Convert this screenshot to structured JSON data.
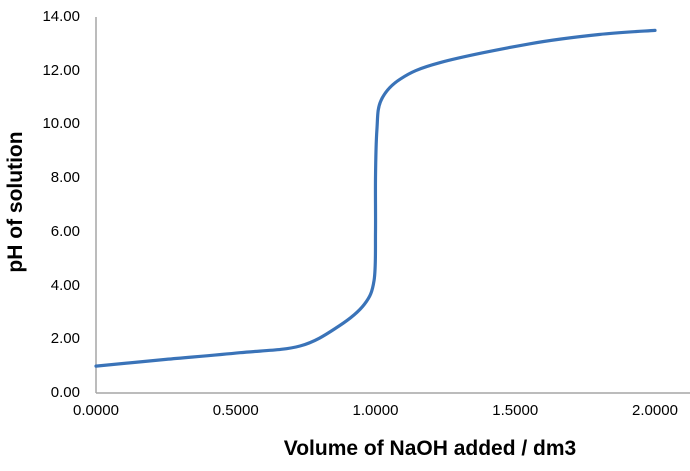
{
  "chart_data": {
    "type": "line",
    "title": "",
    "xlabel": "Volume of NaOH added / dm3",
    "ylabel": "pH of solution",
    "xlim": [
      0,
      2
    ],
    "ylim": [
      0,
      14
    ],
    "grid": false,
    "legend": null,
    "x_ticks": [
      "0.0000",
      "0.5000",
      "1.0000",
      "1.5000",
      "2.0000"
    ],
    "y_ticks": [
      "0.00",
      "2.00",
      "4.00",
      "6.00",
      "8.00",
      "10.00",
      "12.00",
      "14.00"
    ],
    "series": [
      {
        "name": "pH",
        "color": "#3a73b8",
        "x": [
          0.0,
          0.25,
          0.515,
          0.73,
          0.87,
          0.96,
          0.995,
          1.0,
          1.0,
          1.005,
          1.02,
          1.09,
          1.23,
          1.55,
          1.8,
          2.0
        ],
        "y": [
          1.0,
          1.25,
          1.5,
          1.75,
          2.5,
          3.3,
          4.2,
          6.0,
          8.0,
          9.8,
          10.9,
          11.7,
          12.3,
          13.0,
          13.35,
          13.5
        ]
      }
    ]
  },
  "axes": {
    "x_label": "Volume of NaOH added / dm3",
    "y_label": "pH of solution",
    "axis_color": "#a6a6a6",
    "line_color": "#3a73b8"
  }
}
